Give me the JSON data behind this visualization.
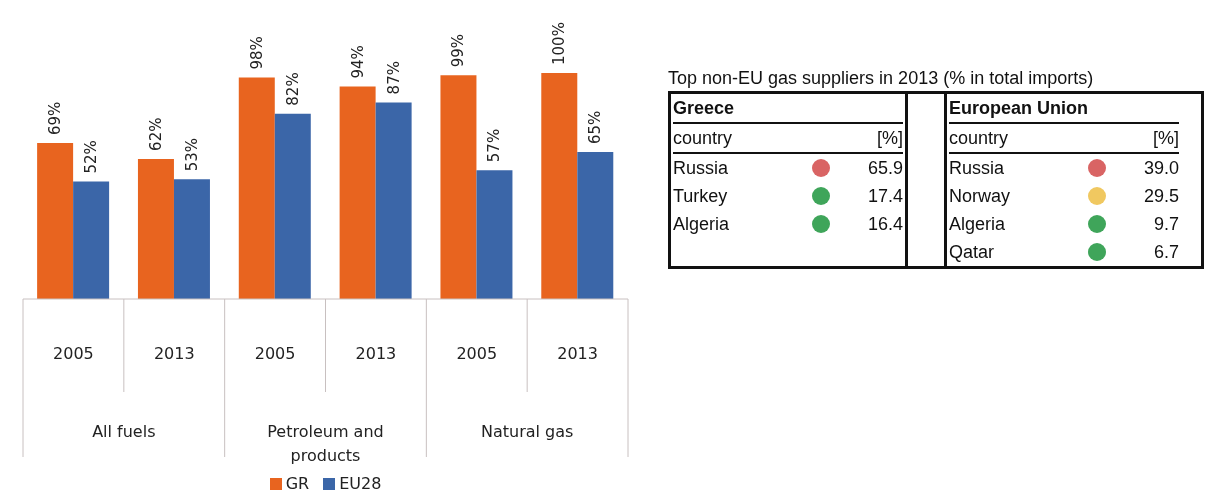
{
  "chart_data": [
    {
      "type": "bar",
      "categories": [
        "2005",
        "2013",
        "2005",
        "2013",
        "2005",
        "2013"
      ],
      "annotations": [
        "All fuels",
        "Petroleum and products",
        "Natural gas"
      ],
      "series": [
        {
          "name": "GR",
          "color": "#e8641f",
          "values": [
            69,
            62,
            98,
            94,
            99,
            100
          ],
          "value_labels": [
            "69%",
            "62%",
            "98%",
            "94%",
            "99%",
            "100%"
          ]
        },
        {
          "name": "EU28",
          "color": "#3b66a8",
          "values": [
            52,
            53,
            82,
            87,
            57,
            65
          ],
          "value_labels": [
            "52%",
            "53%",
            "82%",
            "87%",
            "57%",
            "65%"
          ]
        }
      ],
      "legend": "bottom"
    },
    {
      "type": "other",
      "title": "Top non-EU gas suppliers in 2013 (% in total imports)",
      "subtitle": "Greece",
      "xlabel": "country",
      "ylabel": "[%]",
      "categories": [
        "Russia",
        "Turkey",
        "Algeria"
      ],
      "values": [
        65.9,
        17.4,
        16.4
      ],
      "data_labels": true,
      "colors": [
        "#d96464",
        "#3fa55a",
        "#3fa55a"
      ]
    },
    {
      "type": "other",
      "subtitle": "European Union",
      "xlabel": "country",
      "ylabel": "[%]",
      "categories": [
        "Russia",
        "Norway",
        "Algeria",
        "Qatar"
      ],
      "values": [
        39.0,
        29.5,
        9.7,
        6.7
      ],
      "value_labels": [
        "39.0",
        "29.5",
        "9.7",
        "6.7"
      ],
      "colors": [
        "#d96464",
        "#f0c860",
        "#3fa55a",
        "#3fa55a"
      ]
    }
  ]
}
